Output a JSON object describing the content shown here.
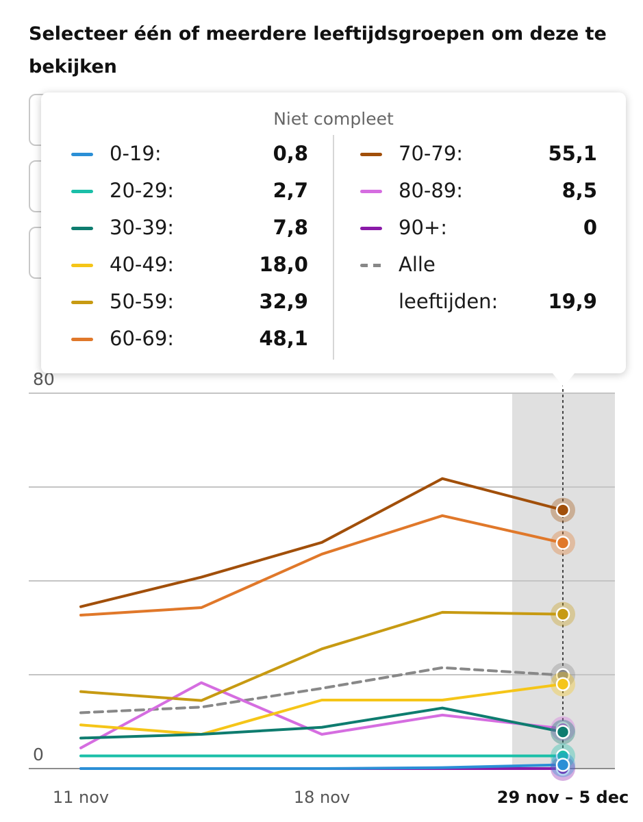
{
  "heading": "Selecteer één of meerdere leeftijdsgroepen om deze te bekijken",
  "tooltip": {
    "title": "Niet compleet",
    "entries": [
      {
        "label": "0-19:",
        "value": "0,8",
        "color": "#2b8fd6"
      },
      {
        "label": "20-29:",
        "value": "2,7",
        "color": "#1bbfa8"
      },
      {
        "label": "30-39:",
        "value": "7,8",
        "color": "#0e7c6f"
      },
      {
        "label": "40-49:",
        "value": "18,0",
        "color": "#f5c518"
      },
      {
        "label": "50-59:",
        "value": "32,9",
        "color": "#c79a12"
      },
      {
        "label": "60-69:",
        "value": "48,1",
        "color": "#e0782a"
      },
      {
        "label": "70-79:",
        "value": "55,1",
        "color": "#a14f0a"
      },
      {
        "label": "80-89:",
        "value": "8,5",
        "color": "#d56de0"
      },
      {
        "label": "90+:",
        "value": "0",
        "color": "#8a1aa8"
      },
      {
        "label": "Alle",
        "label2": "leeftijden:",
        "value": "19,9",
        "color": "#888888"
      }
    ]
  },
  "chart_data": {
    "type": "line",
    "title": "Selecteer één of meerdere leeftijdsgroepen om deze te bekijken",
    "x_index": [
      0,
      1,
      2,
      3,
      4
    ],
    "x_tick_labels": [
      {
        "index": 0,
        "label": "11 nov"
      },
      {
        "index": 2,
        "label": "18 nov"
      },
      {
        "index": 4,
        "label": "29 nov – 5 dec",
        "bold": true
      }
    ],
    "ylim": [
      0,
      80
    ],
    "y_tick_labels": [
      {
        "value": 0,
        "label": "0"
      },
      {
        "value": 80,
        "label": "80"
      }
    ],
    "gridlines": [
      0,
      20,
      40,
      60,
      80
    ],
    "highlight_index": 4,
    "highlight_status": "Niet compleet",
    "series": [
      {
        "name": "0-19",
        "color": "#2b8fd6",
        "values": [
          0,
          0,
          0,
          0.2,
          0.8
        ]
      },
      {
        "name": "20-29",
        "color": "#1bbfa8",
        "values": [
          2.7,
          2.7,
          2.7,
          2.7,
          2.7
        ]
      },
      {
        "name": "30-39",
        "color": "#0e7c6f",
        "values": [
          6.5,
          7.3,
          8.8,
          12.9,
          7.8
        ]
      },
      {
        "name": "40-49",
        "color": "#f5c518",
        "values": [
          9.3,
          7.3,
          14.6,
          14.6,
          18.0
        ]
      },
      {
        "name": "50-59",
        "color": "#c79a12",
        "values": [
          16.4,
          14.5,
          25.5,
          33.3,
          32.9
        ]
      },
      {
        "name": "60-69",
        "color": "#e0782a",
        "values": [
          32.7,
          34.3,
          45.7,
          53.9,
          48.1
        ]
      },
      {
        "name": "70-79",
        "color": "#a14f0a",
        "values": [
          34.5,
          40.8,
          48.2,
          61.8,
          55.1
        ]
      },
      {
        "name": "80-89",
        "color": "#d56de0",
        "values": [
          4.4,
          18.3,
          7.3,
          11.4,
          8.5
        ]
      },
      {
        "name": "90+",
        "color": "#8a1aa8",
        "values": [
          0,
          0,
          0,
          0,
          0
        ]
      },
      {
        "name": "Alle leeftijden",
        "color": "#888888",
        "dashed": true,
        "values": [
          11.9,
          13.1,
          17.1,
          21.5,
          19.9
        ]
      }
    ]
  }
}
